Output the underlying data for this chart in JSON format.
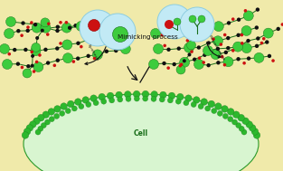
{
  "bg_color": "#f0eaaa",
  "title_text": "Mimicking process",
  "cell_label": "Cell",
  "green_dark": "#1a6e1a",
  "green_bright": "#3dcc3d",
  "green_med": "#28a028",
  "red_color": "#cc1111",
  "dark_color": "#111111",
  "cyan_bubble": "#c2eaf5",
  "cyan_edge": "#8ecde0",
  "cell_fill": "#d8f5d0",
  "cell_edge": "#2a9a2a",
  "membrane_dot": "#2db82d"
}
